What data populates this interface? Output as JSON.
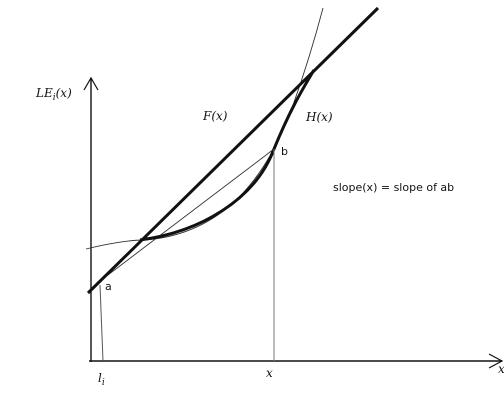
{
  "diagram": {
    "axes": {
      "y_label": "LE_i(x)",
      "y_label_main": "LE",
      "y_label_sub": "i",
      "y_label_tail": "(x)",
      "x_tick_left_main": "l",
      "x_tick_left_sub": "i",
      "x_tick_right": "x",
      "x_axis_end_label": "x"
    },
    "curve_labels": {
      "f": "F(x)",
      "h": "H(x)"
    },
    "point_labels": {
      "a": "a",
      "b": "b"
    },
    "annotation": "slope(x) = slope of ab"
  }
}
